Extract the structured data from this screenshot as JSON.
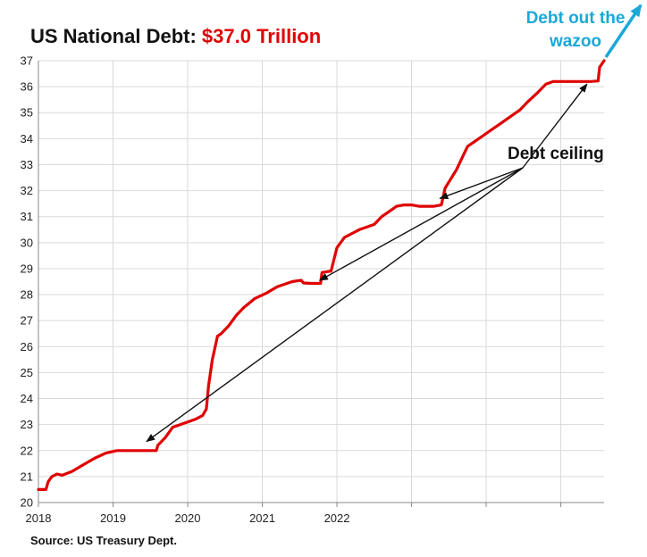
{
  "title": {
    "prefix": "US National Debt: ",
    "highlight": "$37.0 Trillion"
  },
  "source": "Source: US Treasury Dept.",
  "annotations": {
    "wazoo_line1": "Debt out the",
    "wazoo_line2": "wazoo",
    "ceiling": "Debt ceiling"
  },
  "colors": {
    "series": "#e00000",
    "wazoo": "#1ba8d8",
    "arrows": "#111111",
    "grid": "#d9d9d9"
  },
  "chart_data": {
    "type": "line",
    "title": "US National Debt: $37.0 Trillion",
    "xlabel": "",
    "ylabel": "",
    "xlim": [
      2018.0,
      2025.58
    ],
    "ylim": [
      20,
      37
    ],
    "yticks": [
      20,
      21,
      22,
      23,
      24,
      25,
      26,
      27,
      28,
      29,
      30,
      31,
      32,
      33,
      34,
      35,
      36,
      37
    ],
    "xticks": [
      2018,
      2019,
      2020,
      2021,
      2022
    ],
    "grid": true,
    "units": "trillion US dollars",
    "series": [
      {
        "x": [
          2018.0,
          2018.1,
          2018.13,
          2018.18,
          2018.25,
          2018.32,
          2018.45,
          2018.6,
          2018.75,
          2018.9,
          2019.05,
          2019.17,
          2019.58,
          2019.6,
          2019.7,
          2019.8,
          2019.95,
          2020.1,
          2020.2,
          2020.25,
          2020.28,
          2020.33,
          2020.4,
          2020.45,
          2020.55,
          2020.65,
          2020.75,
          2020.9,
          2021.05,
          2021.2,
          2021.4,
          2021.52,
          2021.55,
          2021.65,
          2021.78,
          2021.8,
          2021.9,
          2021.92,
          2022.0,
          2022.1,
          2022.3,
          2022.5,
          2022.6,
          2022.7,
          2022.8,
          2022.9,
          2023.0,
          2023.1,
          2023.3,
          2023.4,
          2023.45,
          2023.6,
          2023.7,
          2023.75,
          2023.85,
          2024.0,
          2024.1,
          2024.2,
          2024.3,
          2024.45,
          2024.55,
          2024.7,
          2024.8,
          2024.9,
          2025.0,
          2025.2,
          2025.3,
          2025.4,
          2025.5,
          2025.52,
          2025.58
        ],
        "values": [
          20.5,
          20.5,
          20.8,
          21.0,
          21.1,
          21.05,
          21.2,
          21.45,
          21.7,
          21.9,
          22.0,
          22.0,
          22.0,
          22.2,
          22.5,
          22.9,
          23.05,
          23.2,
          23.35,
          23.6,
          24.5,
          25.5,
          26.4,
          26.5,
          26.8,
          27.2,
          27.5,
          27.85,
          28.05,
          28.3,
          28.5,
          28.55,
          28.45,
          28.43,
          28.43,
          28.85,
          28.9,
          28.9,
          29.8,
          30.2,
          30.5,
          30.7,
          31.0,
          31.2,
          31.4,
          31.45,
          31.45,
          31.4,
          31.4,
          31.45,
          32.1,
          32.8,
          33.4,
          33.7,
          33.9,
          34.2,
          34.4,
          34.6,
          34.8,
          35.1,
          35.4,
          35.8,
          36.1,
          36.2,
          36.2,
          36.2,
          36.2,
          36.2,
          36.22,
          36.75,
          37.0
        ]
      }
    ]
  }
}
